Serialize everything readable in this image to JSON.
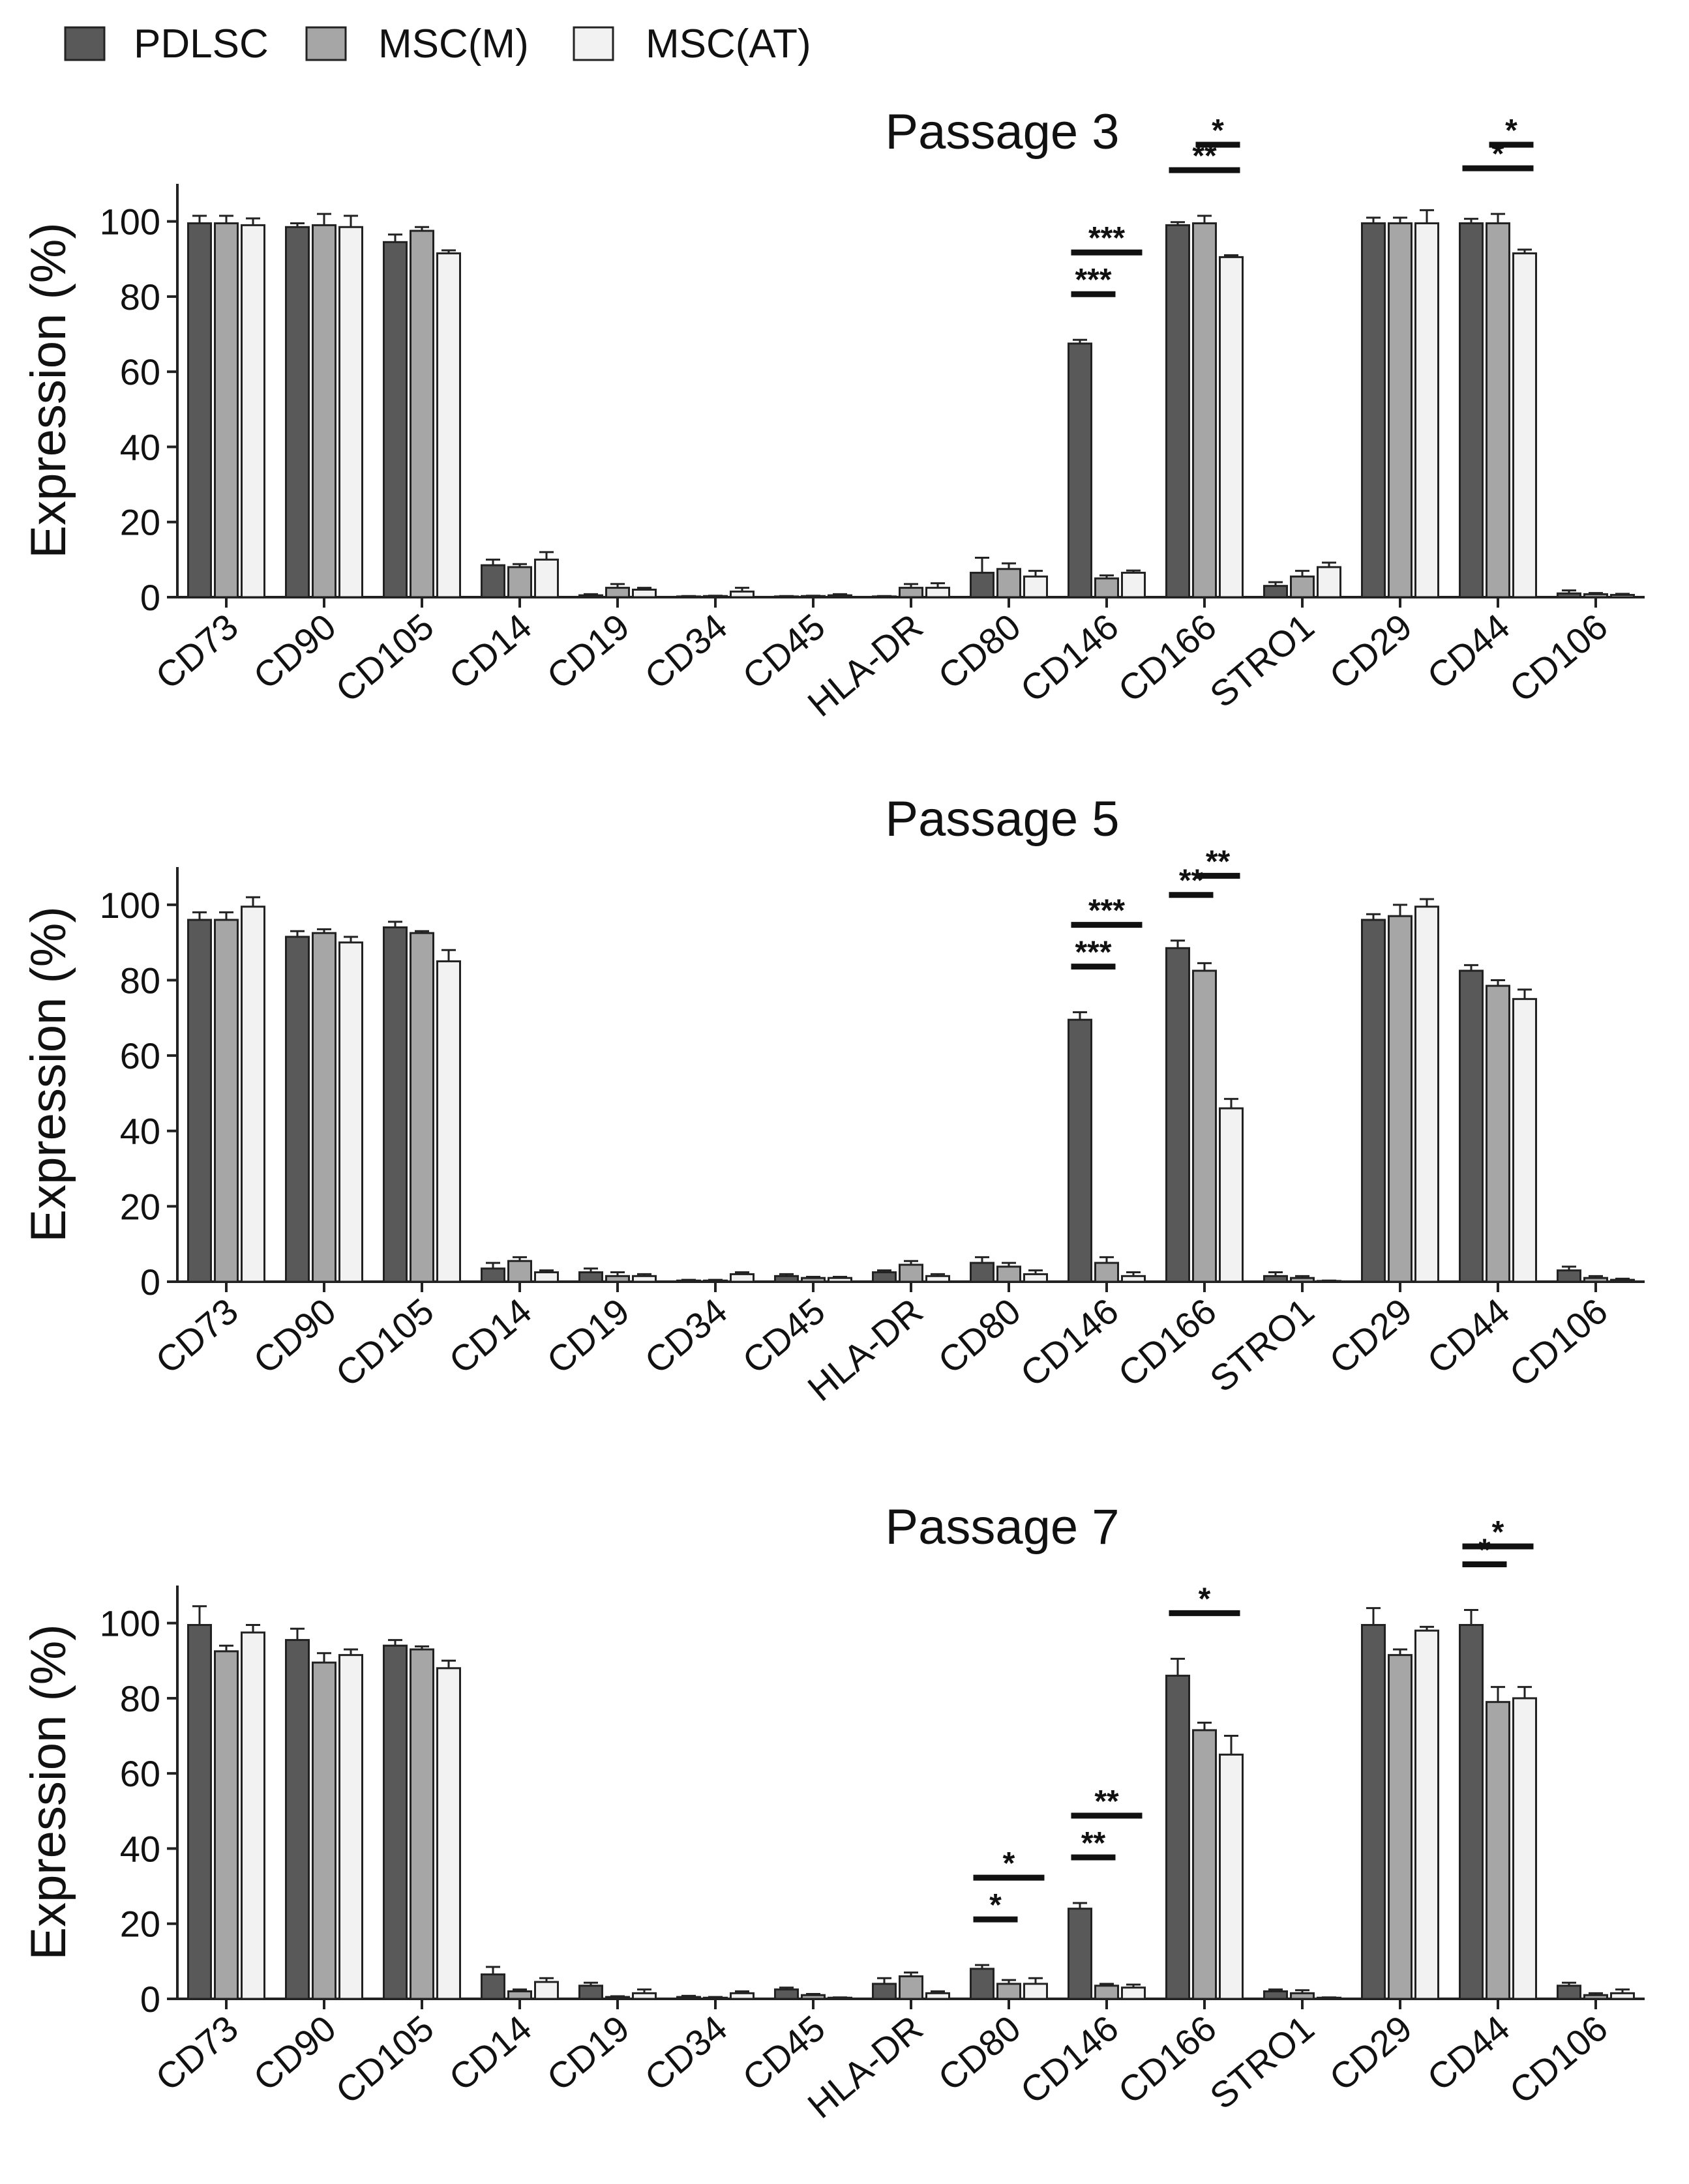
{
  "chart_data": [
    {
      "type": "bar",
      "title": "Passage 3",
      "ylabel": "Expression (%)",
      "xlabel": "",
      "ylim": [
        0,
        110
      ],
      "yticks": [
        0,
        20,
        40,
        60,
        80,
        100
      ],
      "categories": [
        "CD73",
        "CD90",
        "CD105",
        "CD14",
        "CD19",
        "CD34",
        "CD45",
        "HLA-DR",
        "CD80",
        "CD146",
        "CD166",
        "STRO1",
        "CD29",
        "CD44",
        "CD106"
      ],
      "series": [
        {
          "name": "PDLSC",
          "color": "#595959",
          "values": [
            99.5,
            98.5,
            94.5,
            8.5,
            0.5,
            0.2,
            0.2,
            0.2,
            6.5,
            67.5,
            99.0,
            3.0,
            99.5,
            99.5,
            1.0
          ],
          "errors": [
            2.0,
            1.0,
            2.0,
            1.5,
            0.3,
            0.1,
            0.1,
            0.1,
            4.0,
            1.0,
            0.8,
            1.0,
            1.5,
            1.2,
            0.8
          ]
        },
        {
          "name": "MSC(M)",
          "color": "#a6a6a6",
          "values": [
            99.5,
            99.0,
            97.5,
            8.0,
            2.5,
            0.3,
            0.3,
            2.5,
            7.5,
            5.0,
            99.5,
            5.5,
            99.5,
            99.5,
            0.8
          ],
          "errors": [
            2.0,
            3.0,
            1.0,
            0.8,
            1.0,
            0.1,
            0.1,
            1.0,
            1.5,
            0.8,
            2.0,
            1.5,
            1.5,
            2.5,
            0.3
          ]
        },
        {
          "name": "MSC(AT)",
          "color": "#f2f2f2",
          "values": [
            99.0,
            98.5,
            91.5,
            10.0,
            2.0,
            1.5,
            0.5,
            2.5,
            5.5,
            6.5,
            90.5,
            8.0,
            99.5,
            91.5,
            0.6
          ],
          "errors": [
            1.8,
            3.0,
            0.8,
            2.0,
            0.5,
            1.0,
            0.3,
            1.2,
            1.5,
            0.6,
            0.5,
            1.2,
            3.5,
            1.0,
            0.3
          ]
        }
      ],
      "significance": [
        {
          "category": "CD146",
          "from": "PDLSC",
          "to": "MSC(M)",
          "label": "***"
        },
        {
          "category": "CD146",
          "from": "PDLSC",
          "to": "MSC(AT)",
          "label": "***"
        },
        {
          "category": "CD166",
          "from": "PDLSC",
          "to": "MSC(AT)",
          "label": "**"
        },
        {
          "category": "CD166",
          "from": "MSC(M)",
          "to": "MSC(AT)",
          "label": "*"
        },
        {
          "category": "CD44",
          "from": "PDLSC",
          "to": "MSC(AT)",
          "label": "*"
        },
        {
          "category": "CD44",
          "from": "MSC(M)",
          "to": "MSC(AT)",
          "label": "*"
        }
      ]
    },
    {
      "type": "bar",
      "title": "Passage 5",
      "ylabel": "Expression (%)",
      "xlabel": "",
      "ylim": [
        0,
        110
      ],
      "yticks": [
        0,
        20,
        40,
        60,
        80,
        100
      ],
      "categories": [
        "CD73",
        "CD90",
        "CD105",
        "CD14",
        "CD19",
        "CD34",
        "CD45",
        "HLA-DR",
        "CD80",
        "CD146",
        "CD166",
        "STRO1",
        "CD29",
        "CD44",
        "CD106"
      ],
      "series": [
        {
          "name": "PDLSC",
          "color": "#595959",
          "values": [
            96.0,
            91.5,
            94.0,
            3.5,
            2.5,
            0.3,
            1.5,
            2.5,
            5.0,
            69.5,
            88.5,
            1.5,
            96.0,
            82.5,
            3.0
          ],
          "errors": [
            2.0,
            1.5,
            1.5,
            1.5,
            1.0,
            0.2,
            0.5,
            0.5,
            1.5,
            2.0,
            2.0,
            1.0,
            1.5,
            1.5,
            1.0
          ]
        },
        {
          "name": "MSC(M)",
          "color": "#a6a6a6",
          "values": [
            96.0,
            92.5,
            92.5,
            5.5,
            1.5,
            0.3,
            1.0,
            4.5,
            4.0,
            5.0,
            82.5,
            1.0,
            97.0,
            78.5,
            1.0
          ],
          "errors": [
            2.0,
            1.0,
            0.5,
            1.0,
            1.0,
            0.2,
            0.3,
            1.0,
            1.0,
            1.5,
            2.0,
            0.5,
            3.0,
            1.5,
            0.5
          ]
        },
        {
          "name": "MSC(AT)",
          "color": "#f2f2f2",
          "values": [
            99.5,
            90.0,
            85.0,
            2.5,
            1.5,
            2.0,
            1.0,
            1.5,
            2.0,
            1.5,
            46.0,
            0.2,
            99.5,
            75.0,
            0.5
          ],
          "errors": [
            2.5,
            1.5,
            3.0,
            0.5,
            0.5,
            0.5,
            0.3,
            0.5,
            1.0,
            1.0,
            2.5,
            0.1,
            2.0,
            2.5,
            0.3
          ]
        }
      ],
      "significance": [
        {
          "category": "CD146",
          "from": "PDLSC",
          "to": "MSC(M)",
          "label": "***"
        },
        {
          "category": "CD146",
          "from": "PDLSC",
          "to": "MSC(AT)",
          "label": "***"
        },
        {
          "category": "CD166",
          "from": "PDLSC",
          "to": "MSC(M)",
          "label": "**"
        },
        {
          "category": "CD166",
          "from": "MSC(M)",
          "to": "MSC(AT)",
          "label": "**"
        }
      ]
    },
    {
      "type": "bar",
      "title": "Passage 7",
      "ylabel": "Expression (%)",
      "xlabel": "",
      "ylim": [
        0,
        110
      ],
      "yticks": [
        0,
        20,
        40,
        60,
        80,
        100
      ],
      "categories": [
        "CD73",
        "CD90",
        "CD105",
        "CD14",
        "CD19",
        "CD34",
        "CD45",
        "HLA-DR",
        "CD80",
        "CD146",
        "CD166",
        "STRO1",
        "CD29",
        "CD44",
        "CD106"
      ],
      "series": [
        {
          "name": "PDLSC",
          "color": "#595959",
          "values": [
            99.5,
            95.5,
            94.0,
            6.5,
            3.5,
            0.5,
            2.5,
            4.0,
            8.0,
            24.0,
            86.0,
            2.0,
            99.5,
            99.5,
            3.5
          ],
          "errors": [
            5.0,
            3.0,
            1.5,
            2.0,
            0.8,
            0.3,
            0.5,
            1.5,
            1.0,
            1.5,
            4.5,
            0.5,
            4.5,
            4.0,
            0.8
          ]
        },
        {
          "name": "MSC(M)",
          "color": "#a6a6a6",
          "values": [
            92.5,
            89.5,
            93.0,
            2.0,
            0.5,
            0.3,
            1.0,
            6.0,
            4.0,
            3.5,
            71.5,
            1.5,
            91.5,
            79.0,
            1.0
          ],
          "errors": [
            1.5,
            2.5,
            0.8,
            0.5,
            0.2,
            0.2,
            0.3,
            1.0,
            1.0,
            0.5,
            2.0,
            0.8,
            1.5,
            4.0,
            0.5
          ]
        },
        {
          "name": "MSC(AT)",
          "color": "#f2f2f2",
          "values": [
            97.5,
            91.5,
            88.0,
            4.5,
            1.5,
            1.5,
            0.3,
            1.5,
            4.0,
            3.0,
            65.0,
            0.3,
            98.0,
            80.0,
            1.5
          ],
          "errors": [
            2.0,
            1.5,
            2.0,
            1.0,
            1.0,
            0.5,
            0.1,
            0.5,
            1.5,
            0.8,
            5.0,
            0.1,
            1.0,
            3.0,
            1.0
          ]
        }
      ],
      "significance": [
        {
          "category": "CD80",
          "from": "PDLSC",
          "to": "MSC(M)",
          "label": "*"
        },
        {
          "category": "CD80",
          "from": "PDLSC",
          "to": "MSC(AT)",
          "label": "*"
        },
        {
          "category": "CD146",
          "from": "PDLSC",
          "to": "MSC(M)",
          "label": "**"
        },
        {
          "category": "CD146",
          "from": "PDLSC",
          "to": "MSC(AT)",
          "label": "**"
        },
        {
          "category": "CD166",
          "from": "PDLSC",
          "to": "MSC(AT)",
          "label": "*"
        },
        {
          "category": "CD44",
          "from": "PDLSC",
          "to": "MSC(M)",
          "label": "*"
        },
        {
          "category": "CD44",
          "from": "PDLSC",
          "to": "MSC(AT)",
          "label": "*"
        }
      ]
    }
  ],
  "legend": [
    {
      "label": "PDLSC",
      "color": "#595959"
    },
    {
      "label": "MSC(M)",
      "color": "#a6a6a6"
    },
    {
      "label": "MSC(AT)",
      "color": "#f2f2f2"
    }
  ]
}
